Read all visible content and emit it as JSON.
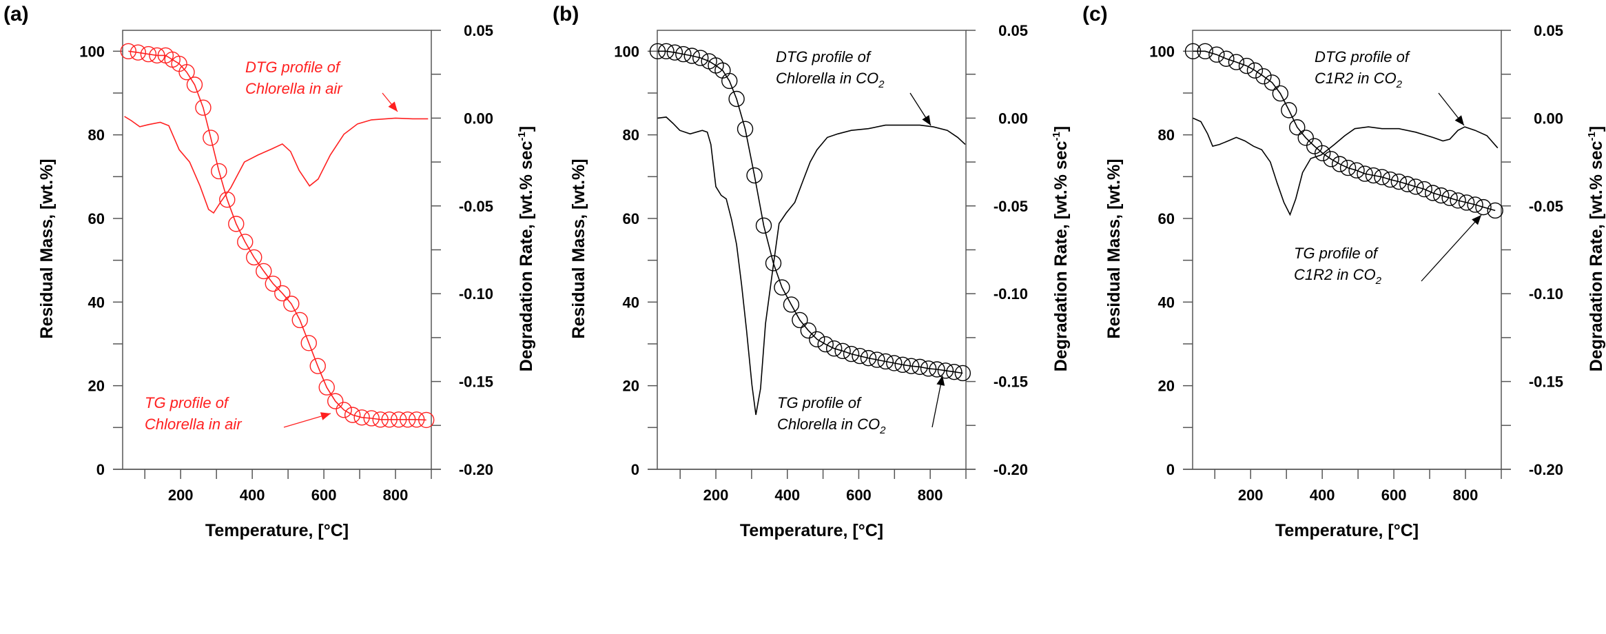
{
  "chart_data": [
    {
      "type": "line+scatter",
      "panel_label": "(a)",
      "xlabel": "Temperature, [°C]",
      "ylabel_left": "Residual Mass, [wt.%]",
      "ylabel_right": {
        "main": "Degradation Rate, [wt.% sec",
        "sup": "-1",
        "end": "]"
      },
      "xlim": [
        38,
        900
      ],
      "ylim_left": [
        0,
        105
      ],
      "ylim_right": [
        -0.2,
        0.05
      ],
      "x_ticks": [
        "200",
        "400",
        "600",
        "800"
      ],
      "y_left_ticks": [
        "0",
        "20",
        "40",
        "60",
        "80",
        "100"
      ],
      "y_right_ticks": [
        "-0.20",
        "-0.15",
        "-0.10",
        "-0.05",
        "0.00",
        "0.05"
      ],
      "color": "#ff2020",
      "annotations": [
        {
          "line1": "DTG profile of",
          "line2": "Chlorella in air",
          "sub": ""
        },
        {
          "line1": "TG profile of",
          "line2": "Chlorella in air",
          "sub": ""
        }
      ],
      "series": [
        {
          "kind": "TG",
          "axis": "left",
          "marker": "open-circle",
          "x": [
            54,
            81,
            110,
            134,
            158,
            177,
            196,
            217,
            239,
            263,
            284,
            307,
            330,
            355,
            380,
            405,
            432,
            458,
            484,
            509,
            533,
            558,
            583,
            608,
            632,
            656,
            680,
            706,
            733,
            758,
            783,
            809,
            834,
            859,
            886
          ],
          "y": [
            100,
            99.7,
            99.3,
            99,
            99,
            98,
            97,
            95,
            92,
            86.5,
            79.3,
            71.3,
            64.5,
            58.7,
            54.4,
            50.7,
            47.4,
            44.4,
            42.1,
            39.6,
            35.7,
            30.2,
            24.7,
            19.6,
            16.3,
            14.2,
            13,
            12.4,
            12.2,
            11.9,
            11.9,
            11.9,
            11.9,
            11.9,
            11.8
          ]
        },
        {
          "kind": "DTG",
          "axis": "right",
          "marker": "none",
          "x": [
            43,
            62,
            86,
            110,
            143,
            167,
            196,
            225,
            254,
            278,
            292,
            311,
            340,
            378,
            416,
            455,
            484,
            507,
            531,
            560,
            584,
            618,
            656,
            694,
            733,
            800,
            848,
            891
          ],
          "y": [
            0.001,
            -0.0014,
            -0.0049,
            -0.0037,
            -0.0024,
            -0.0043,
            -0.018,
            -0.025,
            -0.0386,
            -0.052,
            -0.054,
            -0.048,
            -0.0396,
            -0.025,
            -0.021,
            -0.0175,
            -0.0147,
            -0.019,
            -0.0298,
            -0.0386,
            -0.0347,
            -0.021,
            -0.0092,
            -0.0033,
            -0.001,
            0,
            -0.0004,
            -0.0004
          ]
        }
      ]
    },
    {
      "type": "line+scatter",
      "panel_label": "(b)",
      "xlabel": "Temperature, [°C]",
      "ylabel_left": "Residual Mass, [wt.%]",
      "ylabel_right": {
        "main": "Degradation Rate, [wt.% sec",
        "sup": "-1",
        "end": "]"
      },
      "xlim": [
        36,
        900
      ],
      "ylim_left": [
        0,
        105
      ],
      "ylim_right": [
        -0.2,
        0.05
      ],
      "x_ticks": [
        "200",
        "400",
        "600",
        "800"
      ],
      "y_left_ticks": [
        "0",
        "20",
        "40",
        "60",
        "80",
        "100"
      ],
      "y_right_ticks": [
        "-0.20",
        "-0.15",
        "-0.10",
        "-0.05",
        "0.00",
        "0.05"
      ],
      "color": "#000000",
      "annotations": [
        {
          "line1": "DTG profile of",
          "line2": "Chlorella in CO",
          "sub": "2"
        },
        {
          "line1": "TG profile of",
          "line2": "Chlorella in CO",
          "sub": "2"
        }
      ],
      "series": [
        {
          "kind": "TG",
          "axis": "left",
          "marker": "open-circle",
          "x": [
            37,
            61,
            85,
            109,
            133,
            157,
            181,
            200,
            219,
            238,
            258,
            282,
            308,
            334,
            361,
            385,
            411,
            435,
            459,
            483,
            507,
            531,
            555,
            579,
            603,
            627,
            651,
            675,
            699,
            723,
            747,
            771,
            795,
            819,
            843,
            867,
            891
          ],
          "y": [
            100,
            100,
            99.7,
            99.3,
            98.9,
            98.4,
            97.6,
            96.6,
            95.4,
            92.9,
            88.6,
            81.4,
            70.3,
            58.3,
            49.3,
            43.5,
            39.4,
            35.7,
            33.2,
            31.1,
            29.9,
            28.9,
            28.3,
            27.6,
            27.1,
            26.6,
            26.2,
            25.8,
            25.4,
            25,
            24.7,
            24.5,
            24.1,
            23.9,
            23.6,
            23.3,
            23
          ]
        },
        {
          "kind": "DTG",
          "axis": "right",
          "marker": "none",
          "x": [
            37,
            61,
            80,
            99,
            128,
            162,
            176,
            186,
            200,
            215,
            229,
            244,
            258,
            272,
            286,
            301,
            312,
            325,
            339,
            358,
            377,
            397,
            421,
            445,
            464,
            483,
            512,
            541,
            579,
            627,
            675,
            723,
            771,
            809,
            848,
            877,
            898
          ],
          "y": [
            0,
            0.0006,
            -0.003,
            -0.007,
            -0.009,
            -0.007,
            -0.008,
            -0.015,
            -0.039,
            -0.044,
            -0.046,
            -0.058,
            -0.072,
            -0.095,
            -0.121,
            -0.152,
            -0.169,
            -0.154,
            -0.117,
            -0.088,
            -0.06,
            -0.054,
            -0.048,
            -0.035,
            -0.025,
            -0.018,
            -0.011,
            -0.009,
            -0.007,
            -0.006,
            -0.004,
            -0.004,
            -0.004,
            -0.005,
            -0.007,
            -0.011,
            -0.015
          ]
        }
      ]
    },
    {
      "type": "line+scatter",
      "panel_label": "(c)",
      "xlabel": "Temperature, [°C]",
      "ylabel_left": "Residual Mass, [wt.%]",
      "ylabel_right": {
        "main": "Degradation Rate, [wt.% sec",
        "sup": "-1",
        "end": "]"
      },
      "xlim": [
        38,
        900
      ],
      "ylim_left": [
        0,
        105
      ],
      "ylim_right": [
        -0.2,
        0.05
      ],
      "x_ticks": [
        "200",
        "400",
        "600",
        "800"
      ],
      "y_left_ticks": [
        "0",
        "20",
        "40",
        "60",
        "80",
        "100"
      ],
      "y_right_ticks": [
        "-0.20",
        "-0.15",
        "-0.10",
        "-0.05",
        "0.00",
        "0.05"
      ],
      "color": "#000000",
      "annotations": [
        {
          "line1": "DTG profile of",
          "line2": "C1R2 in CO",
          "sub": "2"
        },
        {
          "line1": "TG profile of",
          "line2": "C1R2 in CO",
          "sub": "2"
        }
      ],
      "series": [
        {
          "kind": "TG",
          "axis": "left",
          "marker": "open-circle",
          "x": [
            39,
            73,
            105,
            132,
            160,
            189,
            212,
            236,
            260,
            283,
            307,
            330,
            354,
            378,
            401,
            425,
            449,
            472,
            496,
            519,
            543,
            567,
            590,
            614,
            638,
            661,
            685,
            709,
            732,
            756,
            779,
            803,
            827,
            850,
            883
          ],
          "y": [
            100,
            100,
            99.2,
            98.2,
            97.4,
            96.5,
            95.4,
            94,
            92.5,
            89.9,
            85.9,
            81.8,
            79.3,
            77.3,
            75.6,
            74.2,
            73,
            72.1,
            71.5,
            70.7,
            70.3,
            69.9,
            69.3,
            68.8,
            68.2,
            67.6,
            67,
            66.1,
            65.5,
            64.9,
            64.3,
            63.8,
            63.3,
            62.7,
            61.9
          ]
        },
        {
          "kind": "DTG",
          "axis": "right",
          "marker": "none",
          "x": [
            39,
            61,
            80,
            94,
            113,
            137,
            160,
            184,
            208,
            231,
            255,
            274,
            293,
            310,
            326,
            345,
            368,
            397,
            434,
            463,
            491,
            529,
            567,
            614,
            661,
            709,
            737,
            756,
            779,
            798,
            827,
            860,
            890
          ],
          "y": [
            0,
            -0.002,
            -0.009,
            -0.016,
            -0.015,
            -0.013,
            -0.011,
            -0.013,
            -0.016,
            -0.018,
            -0.025,
            -0.037,
            -0.048,
            -0.055,
            -0.046,
            -0.031,
            -0.023,
            -0.021,
            -0.015,
            -0.01,
            -0.006,
            -0.005,
            -0.006,
            -0.006,
            -0.008,
            -0.011,
            -0.013,
            -0.012,
            -0.007,
            -0.005,
            -0.007,
            -0.01,
            -0.017
          ]
        }
      ]
    }
  ]
}
